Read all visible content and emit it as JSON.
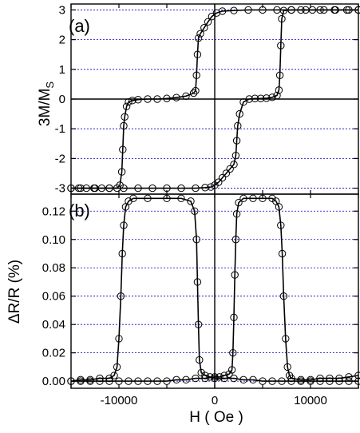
{
  "chart_data": [
    {
      "type": "scatter",
      "panel_label": "(a)",
      "xlabel": "",
      "ylabel_main": "3M/M",
      "ylabel_sub": "S",
      "xlim": [
        -15000,
        15000
      ],
      "ylim": [
        -3.2,
        3.2
      ],
      "yticks": [
        -3,
        -2,
        -1,
        0,
        1,
        2,
        3
      ],
      "ytick_labels": [
        "-3",
        "-2",
        "-1",
        "0",
        "1",
        "2",
        "3"
      ],
      "grid": "dotted horizontal at y ticks",
      "series": [
        {
          "values_descending": [
            [
              15000,
              3.0
            ],
            [
              13800,
              3.0
            ],
            [
              12600,
              3.0
            ],
            [
              11400,
              3.0
            ],
            [
              10200,
              3.0
            ],
            [
              9000,
              3.0
            ],
            [
              8000,
              3.0
            ],
            [
              7200,
              2.98
            ],
            [
              7000,
              2.7
            ],
            [
              6900,
              1.8
            ],
            [
              6800,
              0.8
            ],
            [
              6700,
              0.3
            ],
            [
              6500,
              0.12
            ],
            [
              6000,
              0.06
            ],
            [
              5400,
              0.03
            ],
            [
              4800,
              0.02
            ],
            [
              4200,
              0.02
            ],
            [
              3600,
              0.0
            ],
            [
              3000,
              -0.1
            ],
            [
              2600,
              -0.5
            ],
            [
              2400,
              -0.9
            ],
            [
              2300,
              -1.4
            ],
            [
              2200,
              -1.9
            ],
            [
              2000,
              -2.2
            ],
            [
              1600,
              -2.35
            ],
            [
              1200,
              -2.5
            ],
            [
              800,
              -2.65
            ],
            [
              400,
              -2.8
            ],
            [
              0,
              -2.9
            ],
            [
              -400,
              -2.96
            ],
            [
              -1000,
              -2.98
            ],
            [
              -2000,
              -3.0
            ],
            [
              -3500,
              -3.0
            ],
            [
              -5000,
              -3.0
            ],
            [
              -6500,
              -3.0
            ],
            [
              -8000,
              -3.0
            ],
            [
              -9500,
              -3.0
            ],
            [
              -11000,
              -3.0
            ],
            [
              -12500,
              -3.0
            ],
            [
              -14000,
              -3.0
            ],
            [
              -15000,
              -3.0
            ]
          ],
          "values_ascending": [
            [
              -15000,
              -3.0
            ],
            [
              -14200,
              -3.0
            ],
            [
              -13400,
              -3.0
            ],
            [
              -12600,
              -3.0
            ],
            [
              -11800,
              -3.0
            ],
            [
              -11000,
              -3.0
            ],
            [
              -10200,
              -3.0
            ],
            [
              -9900,
              -2.9
            ],
            [
              -9700,
              -2.45
            ],
            [
              -9600,
              -1.7
            ],
            [
              -9500,
              -0.9
            ],
            [
              -9400,
              -0.6
            ],
            [
              -9200,
              -0.25
            ],
            [
              -9000,
              -0.1
            ],
            [
              -8600,
              -0.05
            ],
            [
              -8000,
              -0.02
            ],
            [
              -7000,
              0.0
            ],
            [
              -6000,
              0.0
            ],
            [
              -5000,
              0.02
            ],
            [
              -4000,
              0.05
            ],
            [
              -3000,
              0.1
            ],
            [
              -2200,
              0.2
            ],
            [
              -2000,
              0.28
            ],
            [
              -1900,
              0.8
            ],
            [
              -1800,
              1.5
            ],
            [
              -1700,
              2.05
            ],
            [
              -1500,
              2.2
            ],
            [
              -1100,
              2.4
            ],
            [
              -700,
              2.6
            ],
            [
              -300,
              2.78
            ],
            [
              200,
              2.9
            ],
            [
              800,
              2.96
            ],
            [
              2000,
              2.98
            ],
            [
              3500,
              3.0
            ],
            [
              5000,
              3.0
            ],
            [
              6500,
              3.0
            ],
            [
              8000,
              3.0
            ],
            [
              9500,
              3.0
            ],
            [
              11000,
              3.0
            ],
            [
              12500,
              3.0
            ],
            [
              14000,
              3.0
            ],
            [
              15000,
              3.0
            ]
          ]
        }
      ]
    },
    {
      "type": "scatter",
      "panel_label": "(b)",
      "xlabel": "H ( Oe )",
      "ylabel": "ΔR/R (%)",
      "xlim": [
        -15000,
        15000
      ],
      "ylim": [
        -0.005,
        0.132
      ],
      "xticks": [
        -10000,
        0,
        10000
      ],
      "xtick_labels": [
        "-10000",
        "0",
        "10000"
      ],
      "yticks": [
        0.0,
        0.02,
        0.04,
        0.06,
        0.08,
        0.1,
        0.12
      ],
      "ytick_labels": [
        "0.00",
        "0.02",
        "0.04",
        "0.06",
        "0.08",
        "0.10",
        "0.12"
      ],
      "grid": "dotted horizontal at y ticks",
      "series": [
        {
          "values_descending": [
            [
              15000,
              0.004
            ],
            [
              14000,
              0.003
            ],
            [
              13000,
              0.002
            ],
            [
              12000,
              0.002
            ],
            [
              11000,
              0.002
            ],
            [
              10000,
              0.001
            ],
            [
              9000,
              0.001
            ],
            [
              8000,
              0.002
            ],
            [
              7800,
              0.004
            ],
            [
              7600,
              0.01
            ],
            [
              7400,
              0.03
            ],
            [
              7200,
              0.06
            ],
            [
              7050,
              0.09
            ],
            [
              6900,
              0.11
            ],
            [
              6700,
              0.123
            ],
            [
              6400,
              0.127
            ],
            [
              6000,
              0.129
            ],
            [
              5000,
              0.129
            ],
            [
              4000,
              0.129
            ],
            [
              3000,
              0.129
            ],
            [
              2500,
              0.126
            ],
            [
              2300,
              0.118
            ],
            [
              2200,
              0.1
            ],
            [
              2100,
              0.075
            ],
            [
              2000,
              0.045
            ],
            [
              1900,
              0.02
            ],
            [
              1800,
              0.008
            ],
            [
              1500,
              0.005
            ],
            [
              1000,
              0.004
            ],
            [
              500,
              0.003
            ],
            [
              0,
              0.003
            ],
            [
              -1000,
              0.002
            ],
            [
              -2000,
              0.002
            ],
            [
              -3000,
              0.001
            ],
            [
              -4000,
              0.001
            ],
            [
              -5000,
              0.0
            ],
            [
              -6000,
              0.0
            ],
            [
              -7000,
              0.0
            ],
            [
              -8000,
              0.0
            ],
            [
              -9000,
              0.0
            ],
            [
              -10000,
              0.0
            ],
            [
              -11000,
              0.0
            ],
            [
              -12000,
              0.0
            ],
            [
              -13000,
              0.0
            ],
            [
              -14000,
              0.0
            ],
            [
              -15000,
              0.0
            ]
          ],
          "values_ascending": [
            [
              -15000,
              0.0
            ],
            [
              -14000,
              0.001
            ],
            [
              -13000,
              0.001
            ],
            [
              -12000,
              0.002
            ],
            [
              -11000,
              0.002
            ],
            [
              -10500,
              0.004
            ],
            [
              -10200,
              0.01
            ],
            [
              -10000,
              0.03
            ],
            [
              -9800,
              0.06
            ],
            [
              -9650,
              0.09
            ],
            [
              -9500,
              0.11
            ],
            [
              -9300,
              0.123
            ],
            [
              -9000,
              0.127
            ],
            [
              -8500,
              0.129
            ],
            [
              -7000,
              0.129
            ],
            [
              -5000,
              0.129
            ],
            [
              -3500,
              0.129
            ],
            [
              -2500,
              0.127
            ],
            [
              -2100,
              0.12
            ],
            [
              -1900,
              0.1
            ],
            [
              -1800,
              0.07
            ],
            [
              -1700,
              0.04
            ],
            [
              -1600,
              0.015
            ],
            [
              -1400,
              0.006
            ],
            [
              -1000,
              0.004
            ],
            [
              -500,
              0.003
            ],
            [
              0,
              0.002
            ],
            [
              1000,
              0.002
            ],
            [
              2000,
              0.002
            ],
            [
              3000,
              0.001
            ],
            [
              4000,
              0.001
            ],
            [
              5000,
              0.0
            ],
            [
              6000,
              0.0
            ],
            [
              7000,
              0.0
            ],
            [
              8000,
              0.0
            ],
            [
              9000,
              0.0
            ],
            [
              10000,
              0.0
            ],
            [
              11000,
              0.0
            ],
            [
              12000,
              0.0
            ],
            [
              13000,
              0.0
            ],
            [
              14000,
              0.0
            ],
            [
              15000,
              0.0
            ]
          ]
        }
      ]
    }
  ],
  "colors": {
    "axis": "#000000",
    "grid": "#0000cc",
    "marker": "#000000",
    "background": "#ffffff"
  }
}
